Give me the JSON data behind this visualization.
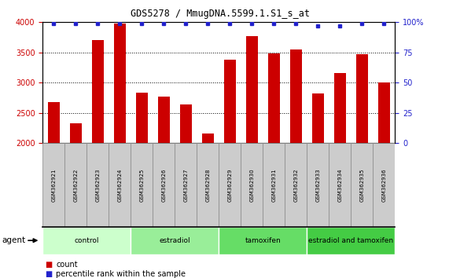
{
  "title": "GDS5278 / MmugDNA.5599.1.S1_s_at",
  "samples": [
    "GSM362921",
    "GSM362922",
    "GSM362923",
    "GSM362924",
    "GSM362925",
    "GSM362926",
    "GSM362927",
    "GSM362928",
    "GSM362929",
    "GSM362930",
    "GSM362931",
    "GSM362932",
    "GSM362933",
    "GSM362934",
    "GSM362935",
    "GSM362936"
  ],
  "counts": [
    2680,
    2330,
    3710,
    3980,
    2830,
    2770,
    2640,
    2160,
    3380,
    3770,
    3490,
    3550,
    2820,
    3160,
    3470,
    3010
  ],
  "percentile": [
    99,
    99,
    99,
    99,
    99,
    99,
    99,
    99,
    99,
    99,
    99,
    99,
    97,
    97,
    99,
    99
  ],
  "bar_color": "#cc0000",
  "dot_color": "#2222cc",
  "ylim_left": [
    2000,
    4000
  ],
  "ylim_right": [
    0,
    100
  ],
  "yticks_left": [
    2000,
    2500,
    3000,
    3500,
    4000
  ],
  "yticks_right": [
    0,
    25,
    50,
    75,
    100
  ],
  "groups": [
    {
      "label": "control",
      "start": 0,
      "end": 4,
      "color": "#ccffcc"
    },
    {
      "label": "estradiol",
      "start": 4,
      "end": 8,
      "color": "#99ee99"
    },
    {
      "label": "tamoxifen",
      "start": 8,
      "end": 12,
      "color": "#66dd66"
    },
    {
      "label": "estradiol and tamoxifen",
      "start": 12,
      "end": 16,
      "color": "#44cc44"
    }
  ],
  "agent_label": "agent",
  "legend_count_label": "count",
  "legend_percentile_label": "percentile rank within the sample",
  "left_tick_color": "#cc0000",
  "right_tick_color": "#2222cc",
  "sample_box_color": "#cccccc",
  "sample_box_edge": "#888888"
}
